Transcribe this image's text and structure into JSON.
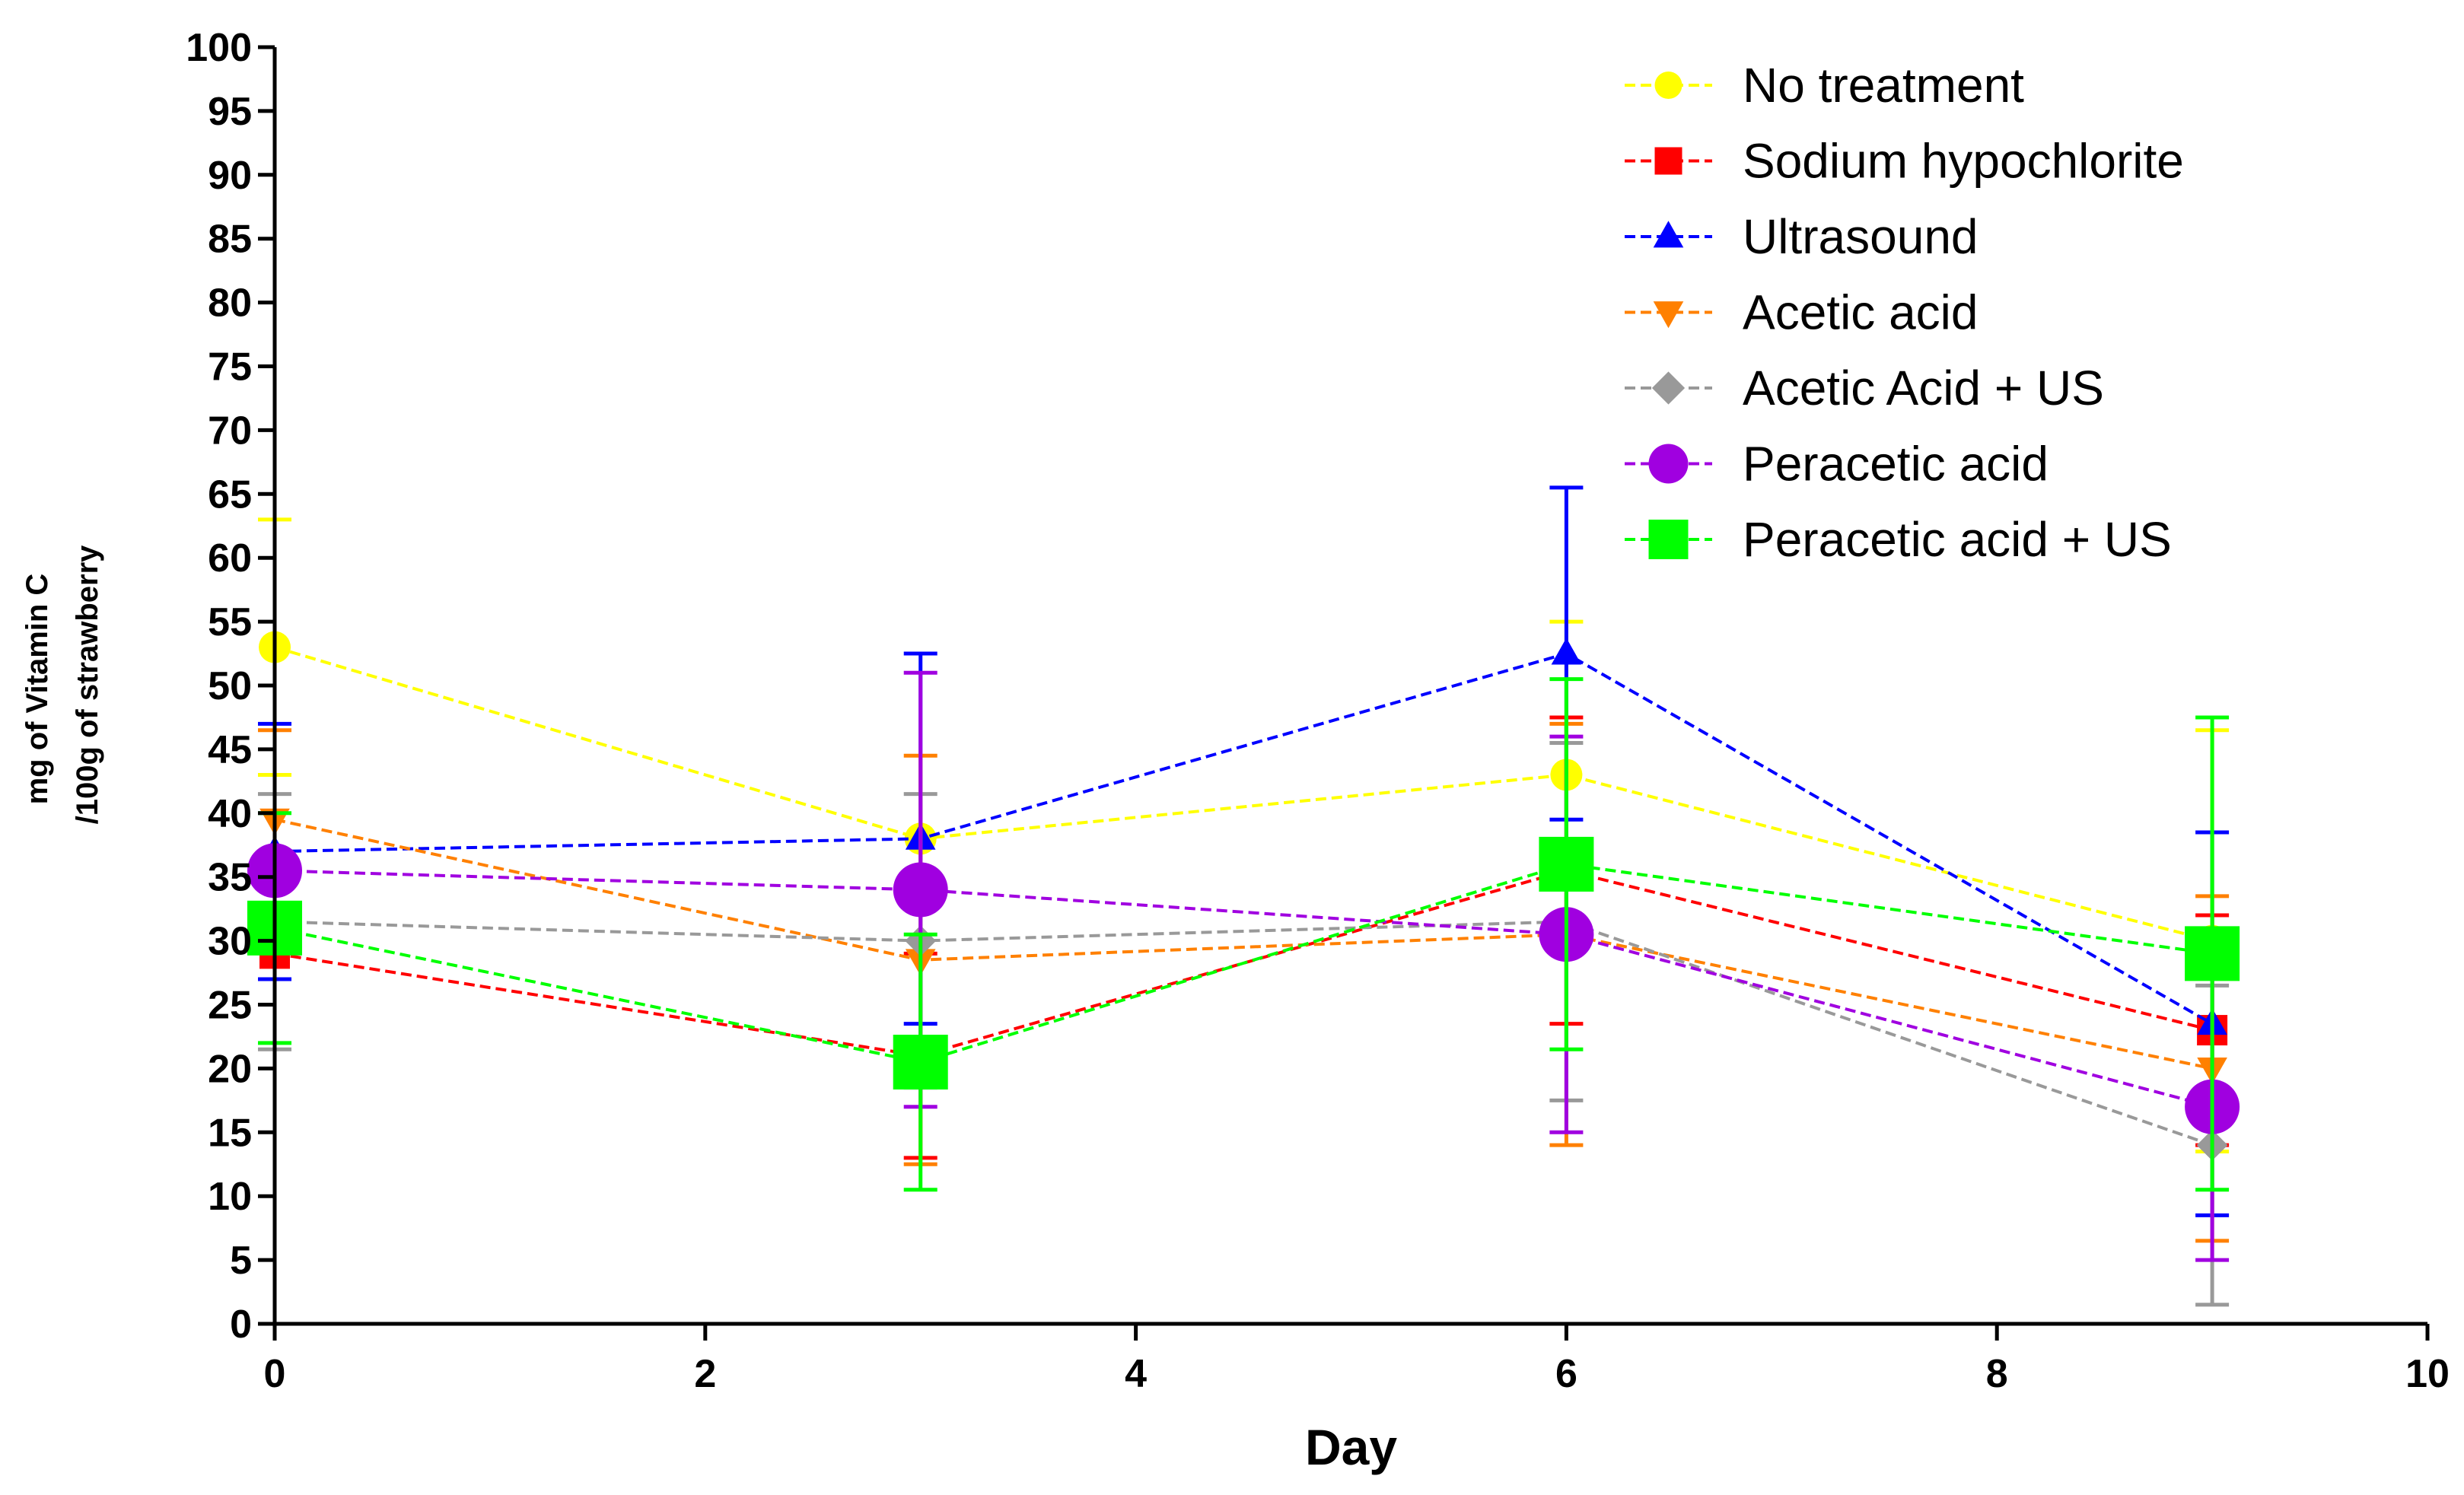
{
  "chart_data": {
    "type": "line",
    "title": "",
    "xlabel": "Day",
    "ylabel_lines": [
      "mg of Vitamin C",
      "/100g of strawberry"
    ],
    "xlim": [
      0,
      10
    ],
    "ylim": [
      0,
      100
    ],
    "x_ticks": [
      0,
      2,
      4,
      6,
      8,
      10
    ],
    "y_ticks": [
      0,
      5,
      10,
      15,
      20,
      25,
      30,
      35,
      40,
      45,
      50,
      55,
      60,
      65,
      70,
      75,
      80,
      85,
      90,
      95,
      100
    ],
    "grid": false,
    "legend_position": "top-right",
    "x": [
      0,
      3,
      6,
      9
    ],
    "series": [
      {
        "name": "No treatment",
        "color": "#ffff00",
        "marker": "circle",
        "values": [
          53,
          38,
          43,
          30
        ],
        "err": [
          10,
          0,
          12,
          16.5
        ]
      },
      {
        "name": "Sodium hypochlorite",
        "color": "#ff0000",
        "marker": "square",
        "values": [
          29,
          21,
          35.5,
          23
        ],
        "err": [
          0,
          8,
          12,
          9
        ]
      },
      {
        "name": "Ultrasound",
        "color": "#0000ff",
        "marker": "triangle-up",
        "values": [
          37,
          38,
          52.5,
          23.5
        ],
        "err": [
          10,
          14.5,
          13,
          15
        ]
      },
      {
        "name": "Acetic acid",
        "color": "#ff8000",
        "marker": "triangle-down",
        "values": [
          39.5,
          28.5,
          30.5,
          20
        ],
        "err": [
          7,
          16,
          16.5,
          13.5
        ]
      },
      {
        "name": "Acetic Acid + US",
        "color": "#999999",
        "marker": "diamond",
        "values": [
          31.5,
          30,
          31.5,
          14
        ],
        "err": [
          10,
          11.5,
          14,
          12.5
        ]
      },
      {
        "name": "Peracetic acid",
        "color": "#a000e0",
        "marker": "circle",
        "values": [
          35.5,
          34,
          30.5,
          17
        ],
        "err": [
          0,
          17,
          15.5,
          12
        ]
      },
      {
        "name": "Peracetic acid + US",
        "color": "#00ff00",
        "marker": "square",
        "values": [
          31,
          20.5,
          36,
          29
        ],
        "err": [
          9,
          10,
          14.5,
          18.5
        ]
      }
    ]
  }
}
